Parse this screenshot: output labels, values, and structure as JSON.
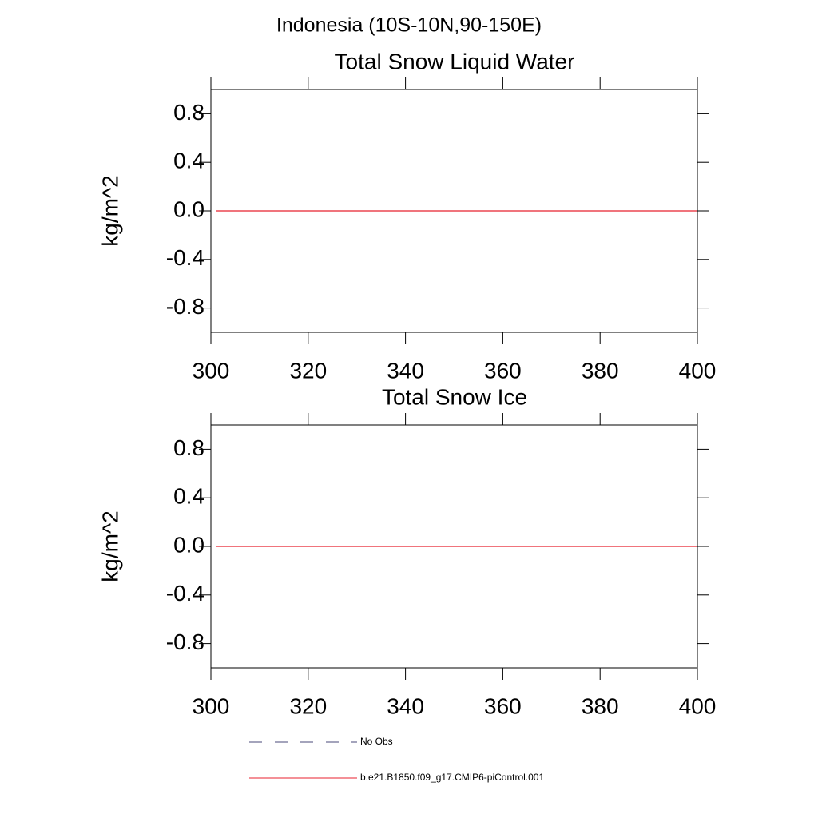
{
  "title": "Indonesia (10S-10N,90-150E)",
  "chart_data": [
    {
      "type": "line",
      "title": "Total Snow Liquid Water",
      "y_label": "kg/m^2",
      "x": [
        301,
        400
      ],
      "series": [
        {
          "name": "b.e21.B1850.f09_g17.CMIP6-piControl.001",
          "color": "#e8212f",
          "values": [
            0,
            0
          ]
        }
      ],
      "xlim": [
        300,
        400
      ],
      "xticks": [
        300,
        320,
        340,
        360,
        380,
        400
      ],
      "ylim": [
        -1,
        1
      ],
      "yticks": [
        -0.8,
        -0.4,
        {
          "value": 0,
          "label": "0.0"
        },
        0.4,
        0.8
      ]
    },
    {
      "type": "line",
      "title": "Total Snow Ice",
      "y_label": "kg/m^2",
      "x": [
        301,
        400
      ],
      "series": [
        {
          "name": "b.e21.B1850.f09_g17.CMIP6-piControl.001",
          "color": "#e8212f",
          "values": [
            0,
            0
          ]
        }
      ],
      "xlim": [
        300,
        400
      ],
      "xticks": [
        300,
        320,
        340,
        360,
        380,
        400
      ],
      "ylim": [
        -1,
        1
      ],
      "yticks": [
        -0.8,
        -0.4,
        {
          "value": 0,
          "label": "0.0"
        },
        0.4,
        0.8
      ]
    }
  ],
  "legend": [
    {
      "name": "No Obs",
      "color": "#4a4a78",
      "dashed": true
    },
    {
      "name": "b.e21.B1850.f09_g17.CMIP6-piControl.001",
      "color": "#e8212f",
      "dashed": false
    }
  ]
}
